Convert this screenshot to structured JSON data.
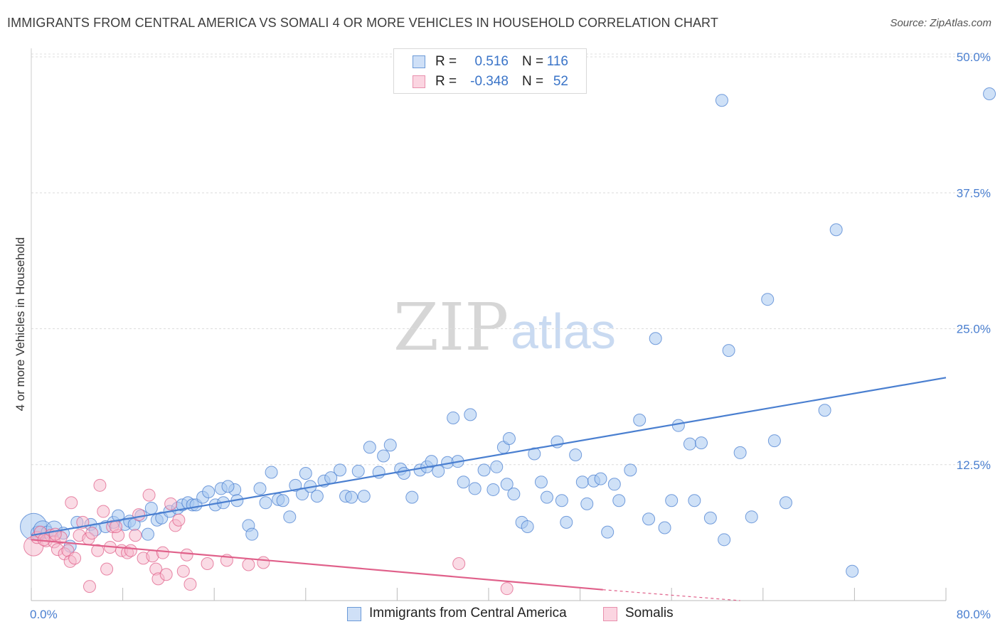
{
  "header": {
    "title": "IMMIGRANTS FROM CENTRAL AMERICA VS SOMALI 4 OR MORE VEHICLES IN HOUSEHOLD CORRELATION CHART",
    "source": "Source: ZipAtlas.com"
  },
  "watermark": {
    "zip": "ZIP",
    "atlas": "atlas"
  },
  "legend": {
    "rows": [
      {
        "r_label": "R =",
        "r_value": "0.516",
        "n_label": "N =",
        "n_value": "116",
        "color": "#a8c8f0"
      },
      {
        "r_label": "R =",
        "r_value": "-0.348",
        "n_label": "N =",
        "n_value": "52",
        "color": "#f5b8cb"
      }
    ]
  },
  "bottom_legend": {
    "items": [
      {
        "label": "Immigrants from Central America",
        "color": "#a8c8f0"
      },
      {
        "label": "Somalis",
        "color": "#f5b8cb"
      }
    ]
  },
  "chart_data": {
    "type": "scatter",
    "ylabel": "4 or more Vehicles in Household",
    "xlabel": "",
    "xlim": [
      0,
      80
    ],
    "ylim": [
      0,
      50
    ],
    "x_tick_labels": [
      "0.0%",
      "80.0%"
    ],
    "y_ticks": [
      12.5,
      25.0,
      37.5,
      50.0
    ],
    "y_tick_labels": [
      "12.5%",
      "25.0%",
      "37.5%",
      "50.0%"
    ],
    "grid": true,
    "series": [
      {
        "name": "Immigrants from Central America",
        "color": "#4a7fd0",
        "fill": "#a8c8f0",
        "trend": {
          "x": [
            0.0,
            80.0
          ],
          "y": [
            6.0,
            20.5
          ]
        },
        "points": [
          [
            0.2,
            6.8,
            2.2
          ],
          [
            0.6,
            6.2,
            1.2
          ],
          [
            1.0,
            6.5,
            1.5
          ],
          [
            1.4,
            6.3,
            1
          ],
          [
            2.0,
            6.6,
            1.3
          ],
          [
            2.8,
            6.2,
            1
          ],
          [
            3.4,
            5.0,
            1
          ],
          [
            4.0,
            7.2,
            1
          ],
          [
            5.2,
            7.0,
            1
          ],
          [
            5.6,
            6.5,
            1
          ],
          [
            6.5,
            6.8,
            1
          ],
          [
            7.2,
            7.2,
            1
          ],
          [
            7.6,
            7.8,
            1
          ],
          [
            8.2,
            7.0,
            1
          ],
          [
            8.6,
            7.3,
            1
          ],
          [
            9.0,
            7.0,
            1
          ],
          [
            9.6,
            7.8,
            1
          ],
          [
            10.2,
            6.1,
            1
          ],
          [
            10.5,
            8.5,
            1
          ],
          [
            11.0,
            7.4,
            1
          ],
          [
            11.4,
            7.6,
            1
          ],
          [
            12.1,
            8.2,
            1
          ],
          [
            12.8,
            8.5,
            1
          ],
          [
            13.2,
            8.8,
            1
          ],
          [
            13.7,
            9.0,
            1
          ],
          [
            14.1,
            8.8,
            1
          ],
          [
            14.4,
            8.8,
            1
          ],
          [
            15.0,
            9.5,
            1
          ],
          [
            15.5,
            10.0,
            1
          ],
          [
            16.1,
            8.8,
            1
          ],
          [
            16.6,
            10.3,
            1
          ],
          [
            17.8,
            10.2,
            1
          ],
          [
            16.8,
            9.0,
            1
          ],
          [
            17.2,
            10.5,
            1
          ],
          [
            18.0,
            9.2,
            1
          ],
          [
            19.0,
            6.9,
            1
          ],
          [
            19.3,
            6.1,
            1
          ],
          [
            20.0,
            10.3,
            1
          ],
          [
            20.5,
            9.0,
            1
          ],
          [
            21.0,
            11.8,
            1
          ],
          [
            21.6,
            9.3,
            1
          ],
          [
            22.0,
            9.2,
            1
          ],
          [
            22.6,
            7.7,
            1
          ],
          [
            23.1,
            10.6,
            1
          ],
          [
            24.0,
            11.7,
            1
          ],
          [
            23.7,
            9.8,
            1
          ],
          [
            24.4,
            10.5,
            1
          ],
          [
            25.0,
            9.6,
            1
          ],
          [
            25.6,
            11.0,
            1
          ],
          [
            26.2,
            11.3,
            1
          ],
          [
            27.0,
            12.0,
            1
          ],
          [
            27.5,
            9.6,
            1
          ],
          [
            28.0,
            9.5,
            1
          ],
          [
            28.6,
            11.9,
            1
          ],
          [
            29.1,
            9.6,
            1
          ],
          [
            29.6,
            14.1,
            1
          ],
          [
            30.4,
            11.8,
            1
          ],
          [
            30.8,
            13.3,
            1
          ],
          [
            31.4,
            14.3,
            1
          ],
          [
            32.3,
            12.1,
            1
          ],
          [
            32.6,
            11.7,
            1
          ],
          [
            33.3,
            9.5,
            1
          ],
          [
            34.0,
            12.0,
            1
          ],
          [
            34.6,
            12.3,
            1
          ],
          [
            35.0,
            12.8,
            1
          ],
          [
            35.6,
            11.9,
            1
          ],
          [
            36.4,
            12.7,
            1
          ],
          [
            36.9,
            16.8,
            1
          ],
          [
            37.3,
            12.8,
            1
          ],
          [
            37.8,
            10.9,
            1
          ],
          [
            38.4,
            17.1,
            1
          ],
          [
            38.8,
            10.3,
            1
          ],
          [
            39.6,
            12.0,
            1
          ],
          [
            40.4,
            10.2,
            1
          ],
          [
            40.7,
            12.3,
            1
          ],
          [
            41.3,
            14.1,
            1
          ],
          [
            41.8,
            14.9,
            1
          ],
          [
            41.6,
            10.7,
            1
          ],
          [
            42.2,
            9.8,
            1
          ],
          [
            42.9,
            7.2,
            1
          ],
          [
            43.4,
            6.8,
            1
          ],
          [
            44.0,
            13.5,
            1
          ],
          [
            44.6,
            10.9,
            1
          ],
          [
            45.1,
            9.5,
            1
          ],
          [
            46.0,
            14.6,
            1
          ],
          [
            46.4,
            9.2,
            1
          ],
          [
            46.8,
            7.2,
            1
          ],
          [
            47.6,
            13.4,
            1
          ],
          [
            48.2,
            10.9,
            1
          ],
          [
            48.6,
            8.9,
            1
          ],
          [
            49.2,
            11.0,
            1
          ],
          [
            49.8,
            11.2,
            1
          ],
          [
            50.4,
            6.3,
            1
          ],
          [
            51.0,
            10.7,
            1
          ],
          [
            51.4,
            9.2,
            1
          ],
          [
            52.4,
            12.0,
            1
          ],
          [
            53.2,
            16.6,
            1
          ],
          [
            54.0,
            7.5,
            1
          ],
          [
            54.6,
            24.1,
            1
          ],
          [
            55.4,
            6.7,
            1
          ],
          [
            56.0,
            9.2,
            1
          ],
          [
            56.6,
            16.1,
            1
          ],
          [
            57.6,
            14.4,
            1
          ],
          [
            58.0,
            9.2,
            1
          ],
          [
            58.6,
            14.5,
            1
          ],
          [
            59.4,
            7.6,
            1
          ],
          [
            60.6,
            5.6,
            1
          ],
          [
            61.0,
            23.0,
            1
          ],
          [
            62.0,
            13.6,
            1
          ],
          [
            63.0,
            7.7,
            1
          ],
          [
            64.4,
            27.7,
            1
          ],
          [
            65.0,
            14.7,
            1
          ],
          [
            66.0,
            9.0,
            1
          ],
          [
            69.4,
            17.5,
            1
          ],
          [
            70.4,
            34.1,
            1
          ],
          [
            71.8,
            2.7,
            1
          ],
          [
            60.4,
            46.0,
            1
          ],
          [
            83.8,
            46.6,
            1
          ]
        ]
      },
      {
        "name": "Somalis",
        "color": "#e0608a",
        "fill": "#f5b8cb",
        "trend": {
          "x": [
            0.0,
            50.0
          ],
          "y": [
            5.6,
            1.0
          ]
        },
        "trend_dashed": {
          "x": [
            50.0,
            62.0
          ],
          "y": [
            1.0,
            0.0
          ]
        },
        "points": [
          [
            0.2,
            5.0,
            1.6
          ],
          [
            0.5,
            5.8,
            1
          ],
          [
            0.8,
            6.3,
            1
          ],
          [
            1.3,
            5.5,
            1
          ],
          [
            1.7,
            6.0,
            1
          ],
          [
            2.0,
            5.4,
            1
          ],
          [
            2.3,
            4.7,
            1
          ],
          [
            2.6,
            5.8,
            1
          ],
          [
            2.9,
            4.3,
            1
          ],
          [
            3.2,
            4.6,
            1
          ],
          [
            3.4,
            3.6,
            1
          ],
          [
            3.8,
            3.9,
            1
          ],
          [
            4.2,
            6.0,
            1
          ],
          [
            4.5,
            7.2,
            1
          ],
          [
            5.0,
            5.7,
            1
          ],
          [
            5.3,
            6.2,
            1
          ],
          [
            3.5,
            9.0,
            1
          ],
          [
            5.8,
            4.6,
            1
          ],
          [
            6.0,
            10.6,
            1
          ],
          [
            6.3,
            8.2,
            1
          ],
          [
            6.6,
            2.9,
            1
          ],
          [
            6.9,
            4.9,
            1
          ],
          [
            7.1,
            6.8,
            1
          ],
          [
            7.6,
            6.0,
            1
          ],
          [
            7.9,
            4.6,
            1
          ],
          [
            8.4,
            4.4,
            1
          ],
          [
            8.7,
            4.6,
            1
          ],
          [
            9.1,
            6.0,
            1
          ],
          [
            9.4,
            7.9,
            1
          ],
          [
            9.8,
            3.9,
            1
          ],
          [
            10.3,
            9.7,
            1
          ],
          [
            10.6,
            4.1,
            1
          ],
          [
            10.9,
            2.9,
            1
          ],
          [
            11.1,
            2.0,
            1
          ],
          [
            11.5,
            4.4,
            1
          ],
          [
            11.8,
            2.4,
            1
          ],
          [
            12.2,
            8.9,
            1
          ],
          [
            12.6,
            6.9,
            1
          ],
          [
            12.9,
            7.4,
            1
          ],
          [
            5.1,
            1.3,
            1
          ],
          [
            13.3,
            2.7,
            1
          ],
          [
            13.6,
            4.2,
            1
          ],
          [
            13.9,
            1.5,
            1
          ],
          [
            15.4,
            3.4,
            1
          ],
          [
            17.1,
            3.7,
            1
          ],
          [
            19.0,
            3.3,
            1
          ],
          [
            20.3,
            3.5,
            1
          ],
          [
            37.4,
            3.4,
            1
          ],
          [
            41.6,
            1.1,
            1
          ],
          [
            7.4,
            6.8,
            1
          ],
          [
            2.1,
            6.1,
            1
          ],
          [
            1.1,
            5.6,
            1
          ]
        ]
      }
    ]
  }
}
